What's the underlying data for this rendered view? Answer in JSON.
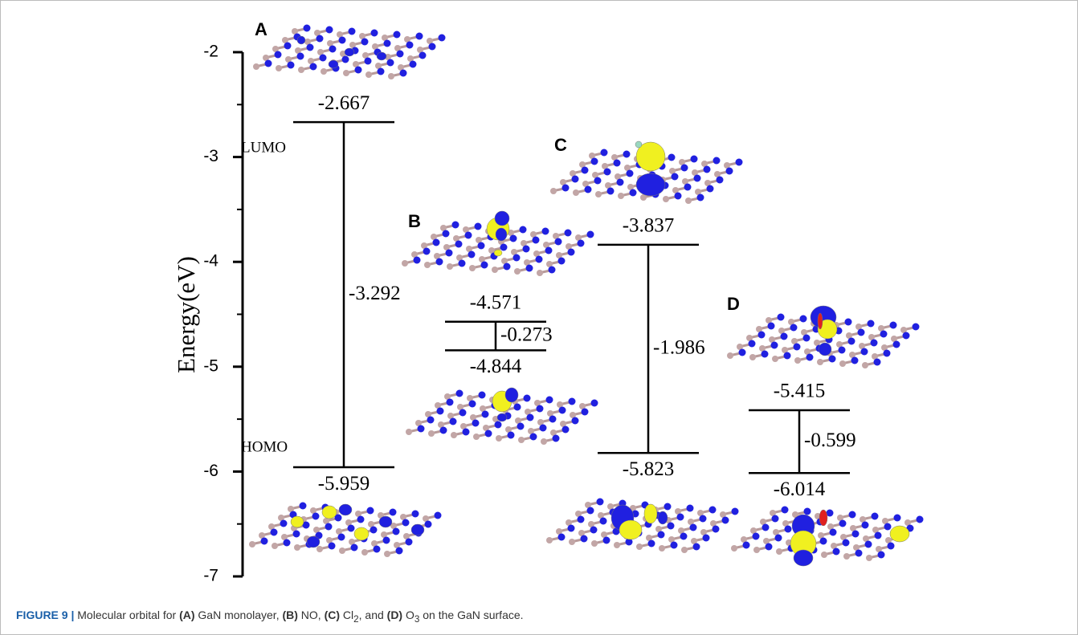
{
  "chart_data": {
    "type": "energy-level",
    "ylabel": "Energy(eV)",
    "ylim": [
      -7,
      -2
    ],
    "yticks": [
      -2,
      -3,
      -4,
      -5,
      -6,
      -7
    ],
    "level_labels": [
      "LUMO",
      "HOMO"
    ],
    "color": "#000000",
    "panels": [
      {
        "label": "A",
        "lumo": -2.667,
        "homo": -5.959,
        "gap": -3.292
      },
      {
        "label": "B",
        "lumo": -4.571,
        "homo": -4.844,
        "gap": -0.273
      },
      {
        "label": "C",
        "lumo": -3.837,
        "homo": -5.823,
        "gap": -1.986
      },
      {
        "label": "D",
        "lumo": -5.415,
        "homo": -6.014,
        "gap": -0.599
      }
    ]
  },
  "caption": [
    "FIGURE 9 |",
    " Molecular orbital for ",
    "(A)",
    " GaN monolayer, ",
    "(B)",
    " NO, ",
    "(C)",
    " Cl",
    "2",
    ", and ",
    "(D)",
    " O",
    "3",
    " on the GaN surface."
  ]
}
